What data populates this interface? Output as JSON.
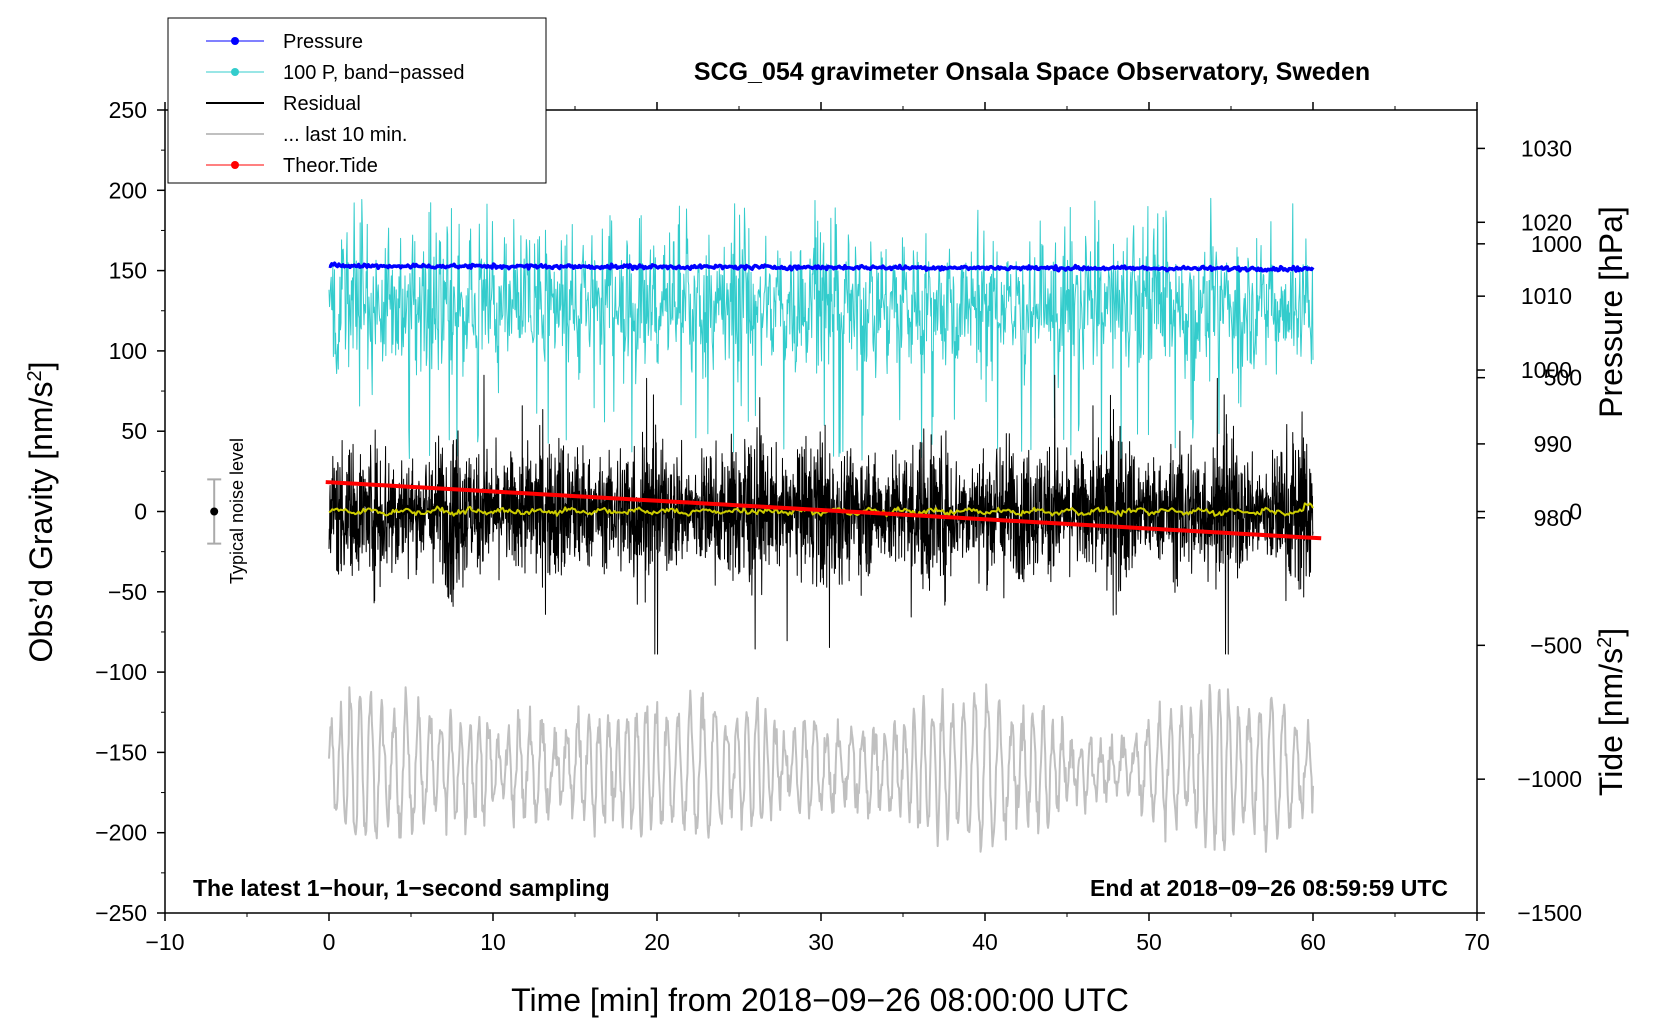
{
  "chart_data": {
    "type": "line",
    "title": "SCG_054 gravimeter Onsala Space Observatory, Sweden",
    "xlabel": "Time [min] from 2018−09−26 08:00:00 UTC",
    "ylabel": "Obs’d Gravity [nm/s",
    "ylabel_sup": "2",
    "ylabel_end": "]",
    "y2label": "Pressure [hPa]",
    "y3label": "Tide [nm/s",
    "y3label_sup": "2",
    "y3label_end": "]",
    "xlim": [
      -10,
      70
    ],
    "ylim": [
      -250,
      250
    ],
    "y2lim": [
      926.5,
      1035.2
    ],
    "y3lim": [
      -1500,
      1500
    ],
    "xticks": [
      -10,
      0,
      10,
      20,
      30,
      40,
      50,
      60,
      70
    ],
    "xtick_labels": [
      "−10",
      "0",
      "10",
      "20",
      "30",
      "40",
      "50",
      "60",
      "70"
    ],
    "yticks": [
      250,
      200,
      150,
      100,
      50,
      0,
      -50,
      -100,
      -150,
      -200,
      -250
    ],
    "ytick_labels": [
      "250",
      "200",
      "150",
      "100",
      "50",
      "0",
      "−50",
      "−100",
      "−150",
      "−200",
      "−250"
    ],
    "y2ticks": [
      1030,
      1020,
      1010,
      1000,
      990,
      980
    ],
    "y2tick_labels": [
      "1030",
      "1020",
      "1010",
      "1000",
      "990",
      "980"
    ],
    "y3ticks": [
      1000,
      500,
      0,
      -500,
      -1000,
      -1500
    ],
    "y3tick_labels": [
      "1000",
      "500",
      "0",
      "−500",
      "−1000",
      "−1500"
    ],
    "annotation_left": "The latest 1−hour, 1−second sampling",
    "annotation_right": "End at 2018−09−26 08:59:59 UTC",
    "noise_label": "Typical noise level",
    "noise_bar": {
      "x": -7,
      "center": 0,
      "half_range": 20
    },
    "legend": [
      {
        "name": "Pressure",
        "color": "#0000ff",
        "marker": true,
        "width": 1
      },
      {
        "name": "100 P, band−passed",
        "color": "#33cccc",
        "marker": true,
        "width": 1
      },
      {
        "name": "Residual",
        "color": "#000000",
        "marker": false,
        "width": 2
      },
      {
        "name": "... last 10 min.",
        "color": "#c0c0c0",
        "marker": false,
        "width": 2
      },
      {
        "name": "Theor.Tide",
        "color": "#ff0000",
        "marker": true,
        "width": 1
      }
    ],
    "series": [
      {
        "name": "Pressure",
        "axis": "pressure_hPa",
        "color": "#0000ff",
        "x_range": [
          0,
          60
        ],
        "start": 1014.1,
        "end": 1013.7,
        "noise": 0.4
      },
      {
        "name": "100 P, band−passed",
        "axis": "gravity",
        "color": "#33cccc",
        "x_range": [
          0,
          60
        ],
        "baseline": 128,
        "amplitude": 30,
        "spike_max": 195,
        "spike_min": 30
      },
      {
        "name": "Residual",
        "axis": "gravity",
        "color": "#000000",
        "x_range": [
          0,
          60
        ],
        "baseline": 0,
        "amplitude": 35,
        "peak_max": 85,
        "peak_min": -92
      },
      {
        "name": "Residual smoothed",
        "axis": "gravity",
        "color": "#cccc00",
        "x_range": [
          0,
          60
        ],
        "baseline": 0,
        "amplitude": 2
      },
      {
        "name": "... last 10 min.",
        "axis": "gravity",
        "color": "#c0c0c0",
        "x_range": [
          0,
          60
        ],
        "baseline": -160,
        "amplitude": 40,
        "peak_max": -85,
        "peak_min": -230
      },
      {
        "name": "Theor.Tide",
        "axis": "tide_nm_s2",
        "color": "#ff0000",
        "x_range": [
          -0.2,
          60.5
        ],
        "start": 110,
        "end": -100
      }
    ]
  }
}
